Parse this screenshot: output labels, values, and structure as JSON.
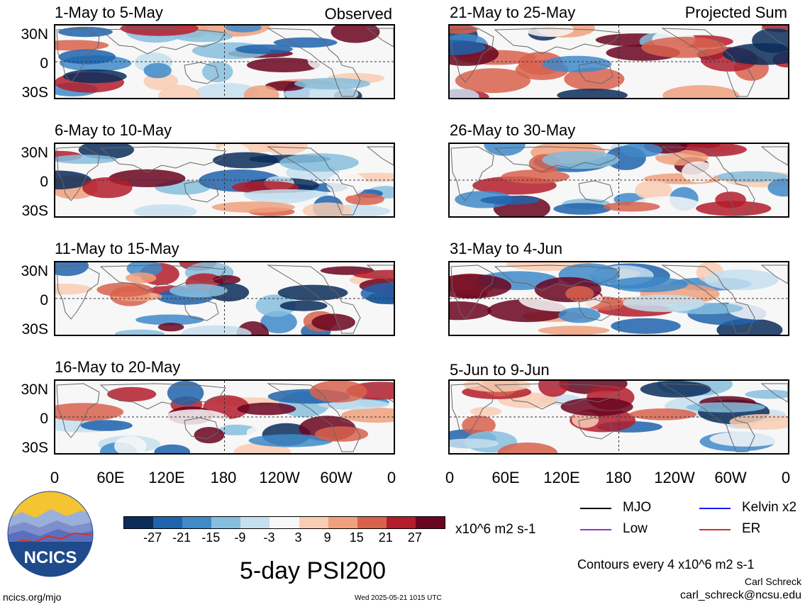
{
  "panels_left": [
    {
      "title": "1-May to 5-May",
      "corner": "Observed"
    },
    {
      "title": "6-May to 10-May",
      "corner": ""
    },
    {
      "title": "11-May to 15-May",
      "corner": ""
    },
    {
      "title": "16-May to 20-May",
      "corner": ""
    }
  ],
  "panels_right": [
    {
      "title": "21-May to 25-May",
      "corner": "Projected Sum"
    },
    {
      "title": "26-May to 30-May",
      "corner": ""
    },
    {
      "title": "31-May to 4-Jun",
      "corner": ""
    },
    {
      "title": "5-Jun to 9-Jun",
      "corner": ""
    }
  ],
  "lat_labels": [
    "30N",
    "0",
    "30S"
  ],
  "lon_labels": [
    "0",
    "60E",
    "120E",
    "180",
    "120W",
    "60W",
    "0"
  ],
  "colorbar": {
    "colors": [
      "#0b2d5a",
      "#1f63ad",
      "#3f8ac9",
      "#86bedd",
      "#c6dfee",
      "#f7f7f7",
      "#f9cdb3",
      "#f0a07e",
      "#d8624d",
      "#b41c2c",
      "#6a0420"
    ],
    "ticks": [
      "-27",
      "-21",
      "-15",
      "-9",
      "-3",
      "3",
      "9",
      "15",
      "21",
      "27"
    ],
    "units": "x10^6 m2 s-1"
  },
  "title": "5-day PSI200",
  "legend": [
    {
      "label": "MJO",
      "color": "#000000"
    },
    {
      "label": "Kelvin x2",
      "color": "#1a1aff"
    },
    {
      "label": "Low",
      "color": "#9a32cd"
    },
    {
      "label": "ER",
      "color": "#d7301f"
    }
  ],
  "contour_note": "Contours every 4 x10^6 m2 s-1",
  "author": "Carl Schreck",
  "email": "carl_schreck@ncsu.edu",
  "site_url": "ncics.org/mjo",
  "timestamp": "Wed 2025-05-21 1015 UTC",
  "logo_text": "NCICS"
}
